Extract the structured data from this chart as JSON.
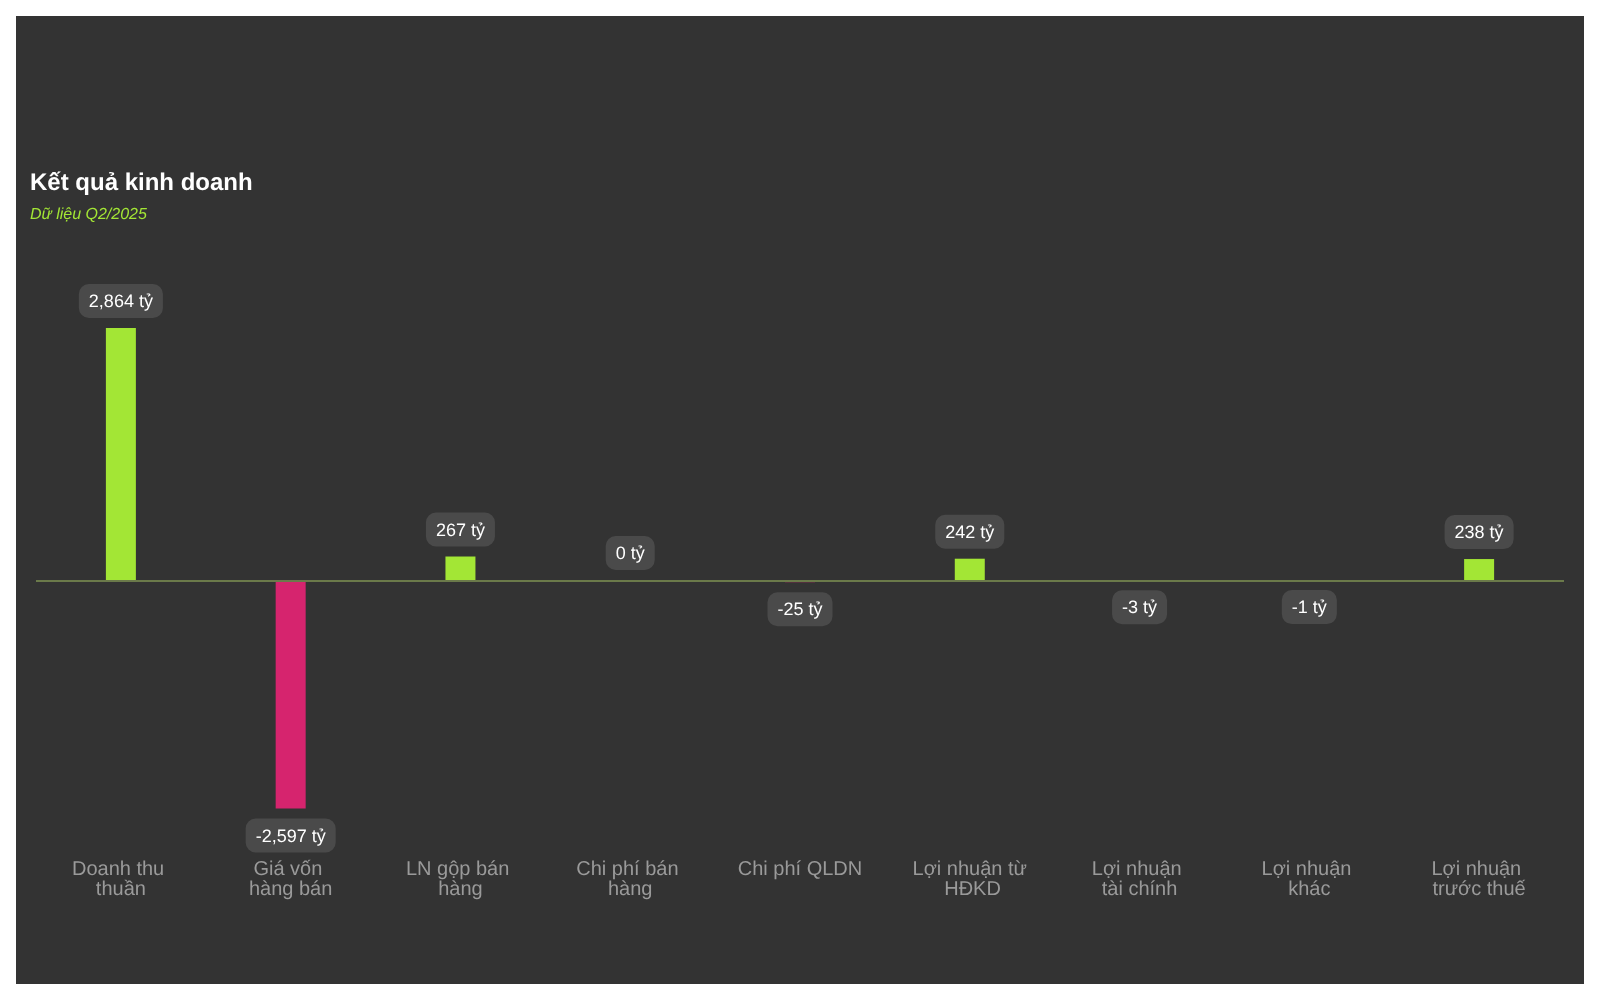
{
  "chart_data": {
    "type": "bar",
    "title": "Kết quả kinh doanh",
    "subtitle": "Dữ liệu Q2/2025",
    "categories": [
      "Doanh thu thuần",
      "Giá vốn hàng bán",
      "LN gộp bán hàng",
      "Chi phí bán hàng",
      "Chi phí QLDN",
      "Lợi nhuận từ HĐKD",
      "Lợi nhuận tài chính",
      "Lợi nhuận khác",
      "Lợi nhuận trước thuế"
    ],
    "values": [
      2864,
      -2597,
      267,
      0,
      -25,
      242,
      -3,
      -1,
      238
    ],
    "colors": [
      "#a3e635",
      "#d6246e",
      "#a3e635",
      "#a3e635",
      "#d6246e",
      "#a3e635",
      "#d6246e",
      "#d6246e",
      "#a3e635"
    ],
    "value_labels": [
      "2,864 tỷ",
      "-2,597 tỷ",
      "267 tỷ",
      "0 tỷ",
      "-25 tỷ",
      "242 tỷ",
      "-3 tỷ",
      "-1 tỷ",
      "238 tỷ"
    ],
    "ref_lines": [
      {
        "axis": "y",
        "value": 0,
        "color": "#6b7a4a"
      }
    ]
  }
}
